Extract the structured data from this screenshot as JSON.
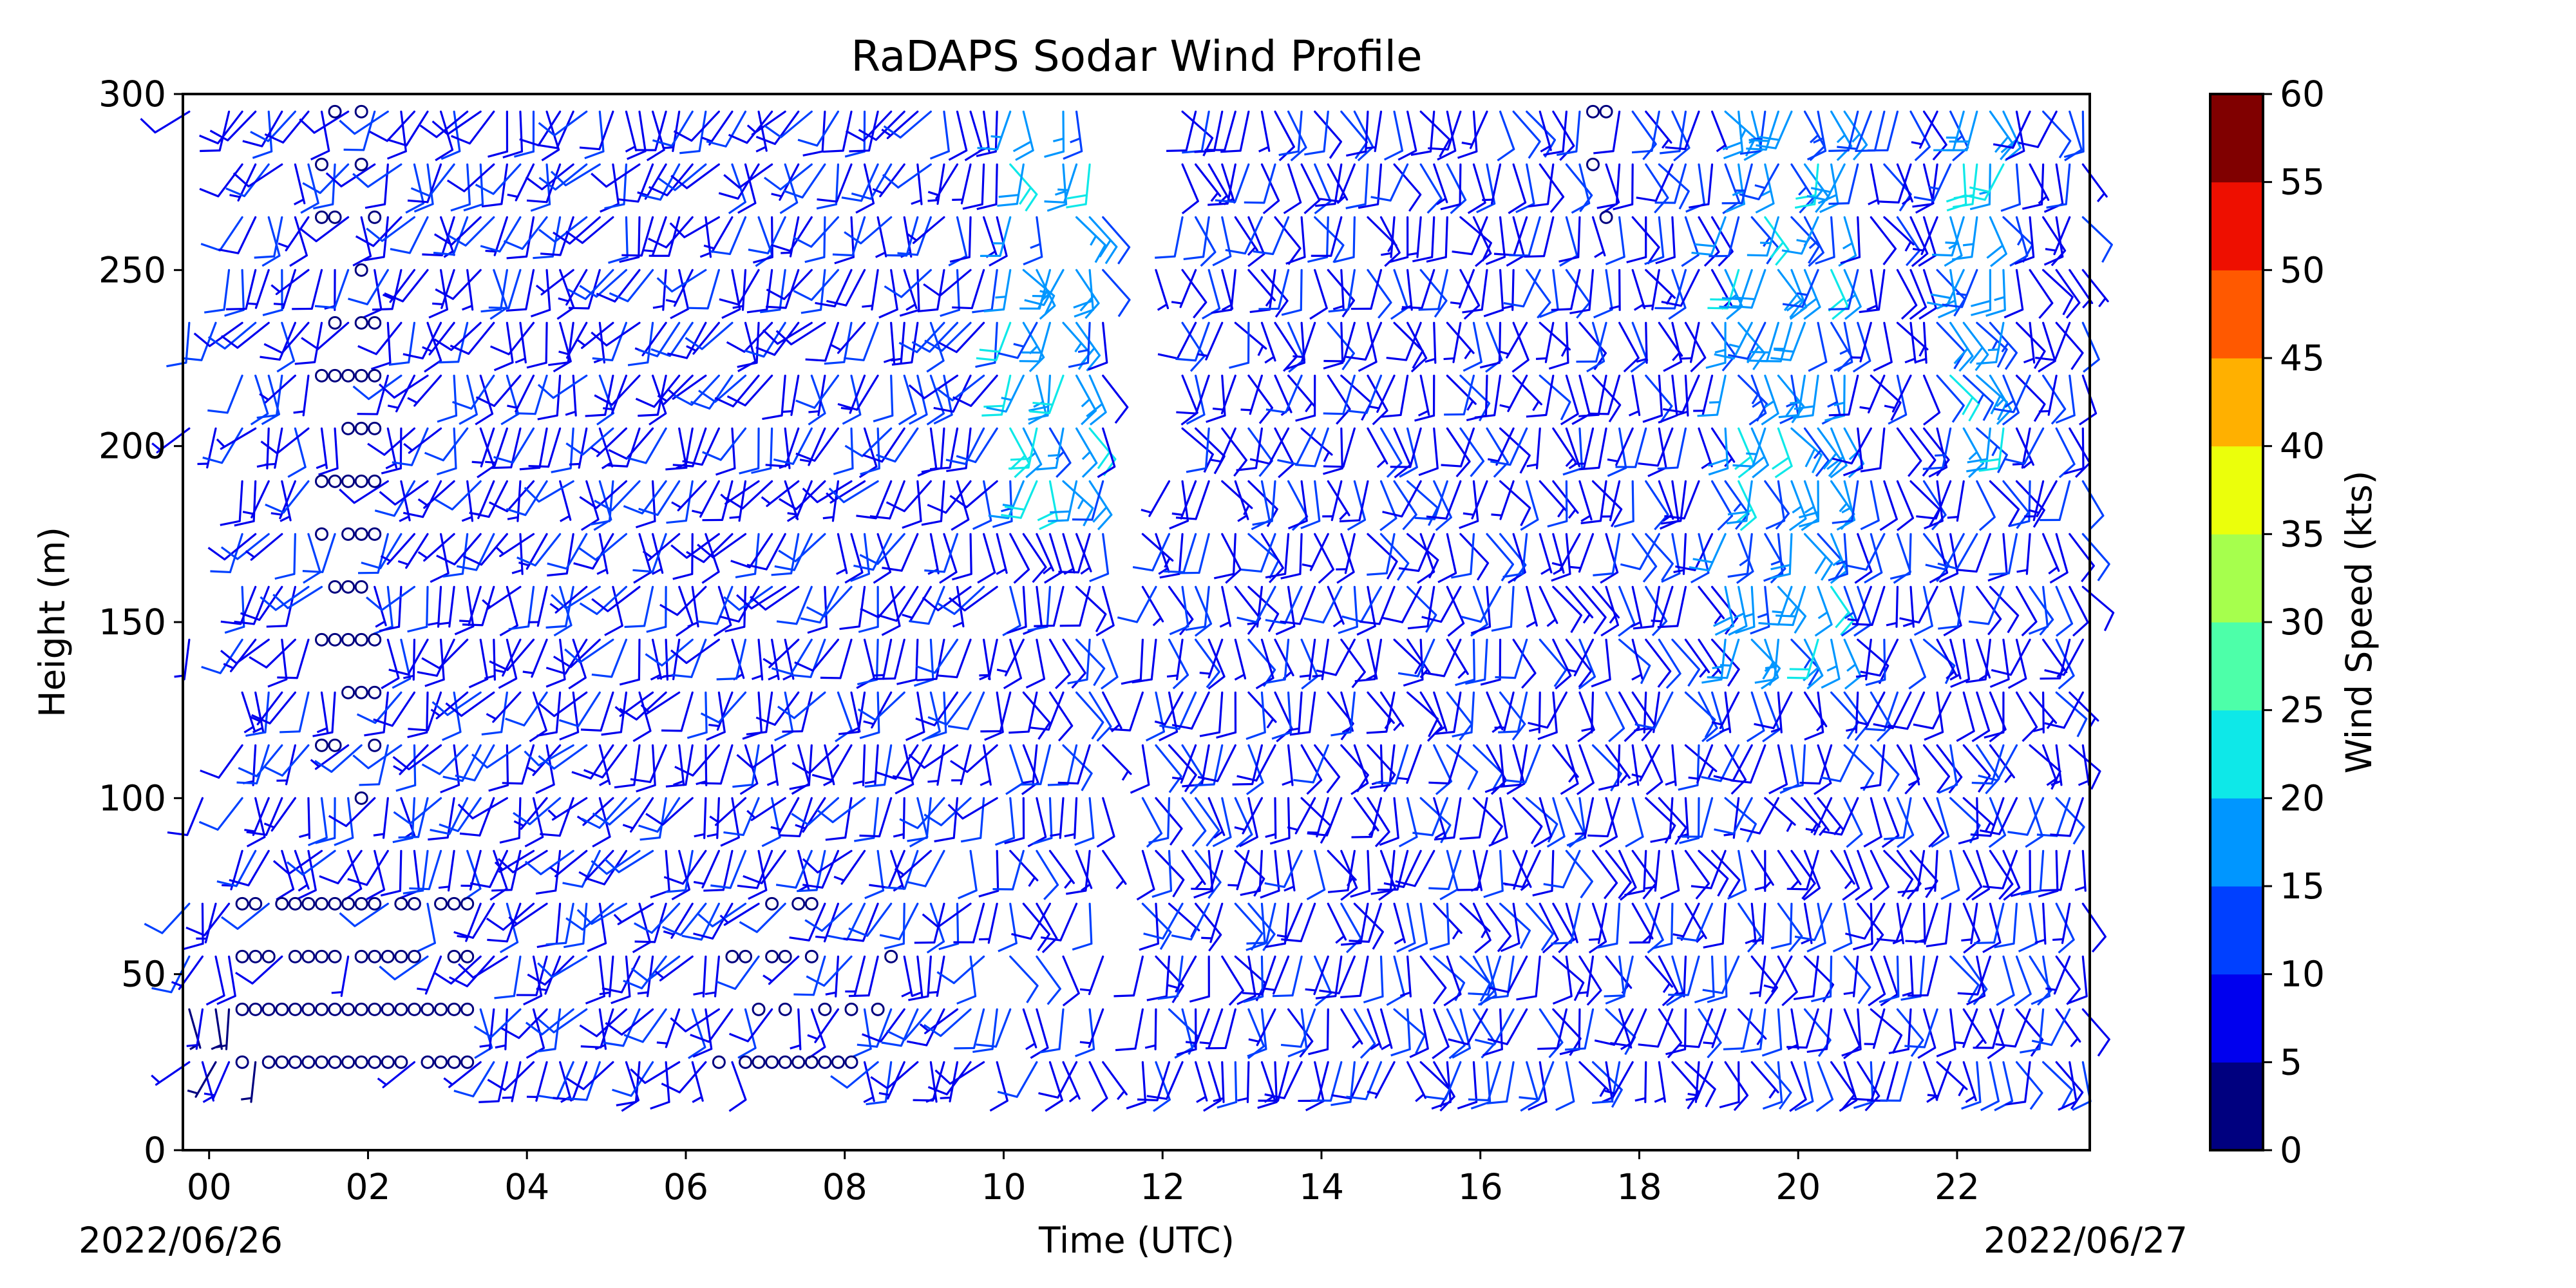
{
  "chart_data": {
    "type": "wind_barb",
    "title": "RaDAPS Sodar Wind Profile",
    "xlabel": "Time (UTC)",
    "ylabel": "Height (m)",
    "date_start": "2022/06/26",
    "date_end": "2022/06/27",
    "x_ticks": [
      "00",
      "02",
      "04",
      "06",
      "08",
      "10",
      "12",
      "14",
      "16",
      "18",
      "20",
      "22"
    ],
    "x_tick_hours": [
      0,
      2,
      4,
      6,
      8,
      10,
      12,
      14,
      16,
      18,
      20,
      22
    ],
    "xlim_hours": [
      -0.33,
      23.67
    ],
    "y_ticks": [
      0,
      50,
      100,
      150,
      200,
      250,
      300
    ],
    "ylim": [
      0,
      300
    ],
    "height_levels_m": [
      25,
      40,
      55,
      70,
      85,
      100,
      115,
      130,
      145,
      160,
      175,
      190,
      205,
      220,
      235,
      250,
      265,
      280,
      295
    ],
    "data_gap_hours": [
      11.25,
      11.65
    ],
    "colorbar": {
      "label": "Wind Speed (kts)",
      "ticks": [
        0,
        5,
        10,
        15,
        20,
        25,
        30,
        35,
        40,
        45,
        50,
        55,
        60
      ],
      "bands": [
        {
          "from": 0,
          "to": 5,
          "color": "#00007f"
        },
        {
          "from": 5,
          "to": 10,
          "color": "#0000ee"
        },
        {
          "from": 10,
          "to": 15,
          "color": "#0040ff"
        },
        {
          "from": 15,
          "to": 20,
          "color": "#0096ff"
        },
        {
          "from": 20,
          "to": 25,
          "color": "#0ee8e8"
        },
        {
          "from": 25,
          "to": 30,
          "color": "#4dffa9"
        },
        {
          "from": 30,
          "to": 35,
          "color": "#a6ff4d"
        },
        {
          "from": 35,
          "to": 40,
          "color": "#ebff0b"
        },
        {
          "from": 40,
          "to": 45,
          "color": "#ffb000"
        },
        {
          "from": 45,
          "to": 50,
          "color": "#ff5900"
        },
        {
          "from": 50,
          "to": 55,
          "color": "#ee0f00"
        },
        {
          "from": 55,
          "to": 60,
          "color": "#800000"
        }
      ]
    },
    "calm_marker": "circle",
    "series_note": ""
  }
}
